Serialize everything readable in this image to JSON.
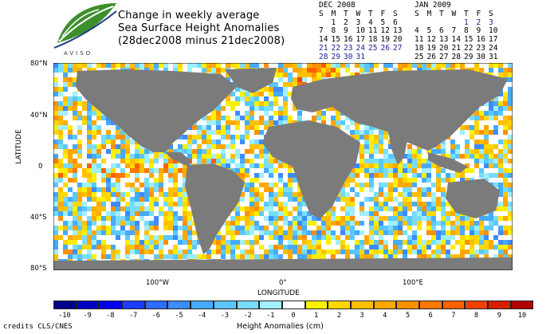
{
  "title": {
    "line1": "Change in weekly average",
    "line2": "Sea Surface Height Anomalies",
    "line3": "(28dec2008 minus 21dec2008)"
  },
  "logo": {
    "text": "AVISO",
    "icon": "leaf-logo-icon"
  },
  "calendar_dec": {
    "title": "DEC 2008",
    "days": [
      "S",
      "M",
      "T",
      "W",
      "T",
      "F",
      "S"
    ],
    "weeks": [
      [
        "",
        "1",
        "2",
        "3",
        "4",
        "5",
        "6"
      ],
      [
        "7",
        "8",
        "9",
        "10",
        "11",
        "12",
        "13"
      ],
      [
        "14",
        "15",
        "16",
        "17",
        "18",
        "19",
        "20"
      ],
      [
        "21",
        "22",
        "23",
        "24",
        "25",
        "26",
        "27"
      ],
      [
        "28",
        "29",
        "30",
        "31",
        "",
        "",
        ""
      ]
    ]
  },
  "calendar_jan": {
    "title": "JAN 2009",
    "days": [
      "S",
      "M",
      "T",
      "W",
      "T",
      "F",
      "S"
    ],
    "weeks": [
      [
        "",
        "",
        "",
        "",
        "1",
        "2",
        "3"
      ],
      [
        "4",
        "5",
        "6",
        "7",
        "8",
        "9",
        "10"
      ],
      [
        "11",
        "12",
        "13",
        "14",
        "15",
        "16",
        "17"
      ],
      [
        "18",
        "19",
        "20",
        "21",
        "22",
        "23",
        "24"
      ],
      [
        "25",
        "26",
        "27",
        "28",
        "29",
        "30",
        "31"
      ]
    ]
  },
  "map": {
    "ylabel": "LATITUDE",
    "xlabel": "LONGITUDE",
    "yticks": [
      "80°N",
      "40°N",
      "0",
      "40°S",
      "80°S"
    ],
    "xticks": [
      "100°W",
      "0°",
      "100°E"
    ],
    "land_color": "#7b7b7b",
    "ice_color": "#ffffff"
  },
  "colorbar": {
    "title": "Height Anomalies (cm)",
    "ticks": [
      "-10",
      "-9",
      "-8",
      "-7",
      "-6",
      "-5",
      "-4",
      "-3",
      "-2",
      "-1",
      "0",
      "1",
      "2",
      "3",
      "4",
      "5",
      "6",
      "7",
      "8",
      "9",
      "10"
    ],
    "colors": [
      "#00008b",
      "#0000c0",
      "#0000f0",
      "#1c3cff",
      "#2c6cff",
      "#3c8cff",
      "#46aaff",
      "#5ac8ff",
      "#78dcff",
      "#a0f0ff",
      "#ffffff",
      "#fff000",
      "#ffd800",
      "#ffc000",
      "#ffa800",
      "#ff9000",
      "#ff7800",
      "#ff6000",
      "#f04000",
      "#d82000",
      "#b00000"
    ]
  },
  "credits": "credits CLS/CNES"
}
